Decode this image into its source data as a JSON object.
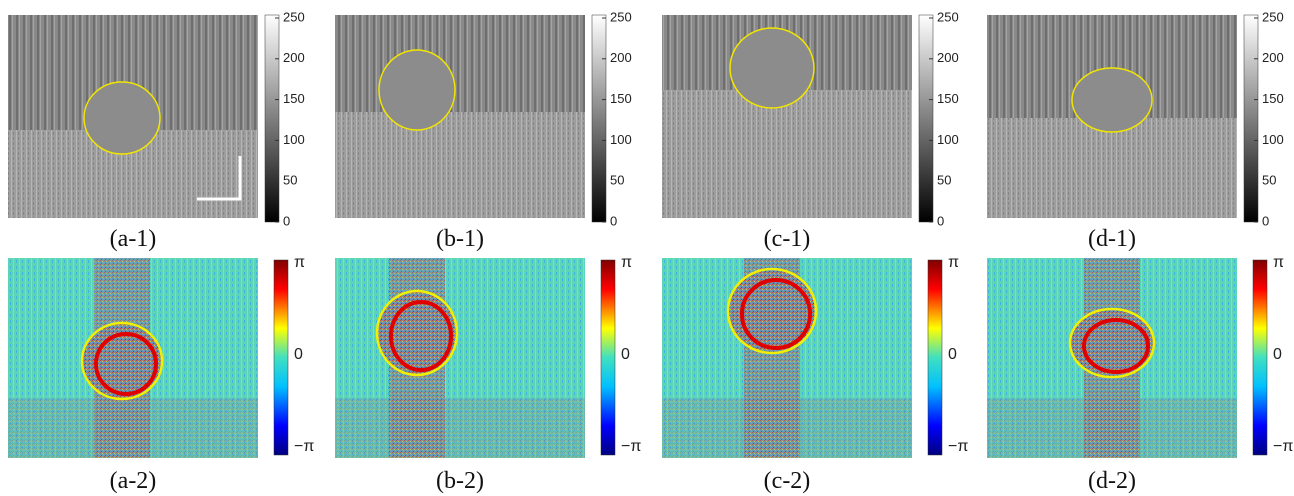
{
  "amplitude_colorbar": {
    "ticks": [
      "250",
      "200",
      "150",
      "100",
      "50",
      "0"
    ]
  },
  "phase_colorbar": {
    "ticks": [
      "π",
      "0",
      "−π"
    ]
  },
  "top_row": [
    "(a-1)",
    "(b-1)",
    "(c-1)",
    "(d-1)"
  ],
  "bottom_row": [
    "(a-2)",
    "(b-2)",
    "(c-2)",
    "(d-2)"
  ]
}
